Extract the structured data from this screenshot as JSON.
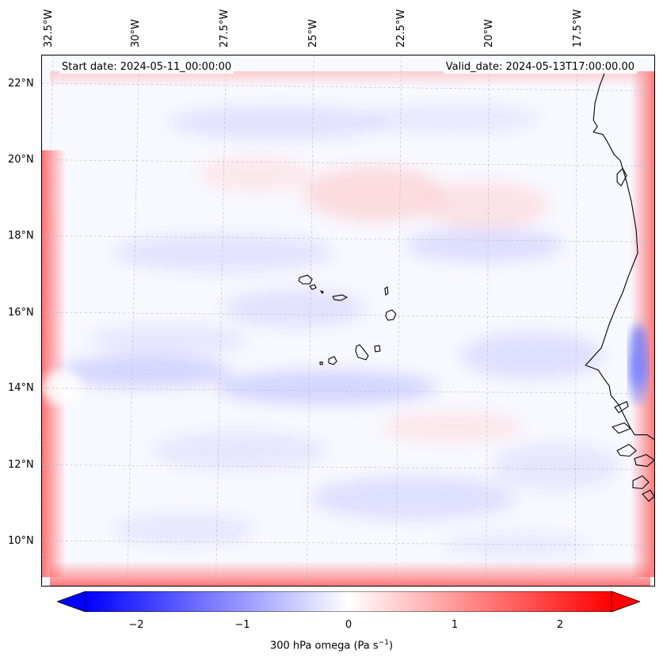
{
  "map": {
    "start_date": "Start date: 2024-05-11_00:00:00",
    "valid_date": "Valid_date: 2024-05-13T17:00:00.00",
    "lon_labels": [
      "32.5°W",
      "30°W",
      "27.5°W",
      "25°W",
      "22.5°W",
      "20°W",
      "17.5°W"
    ],
    "lat_labels": [
      "22°N",
      "20°N",
      "18°N",
      "16°N",
      "14°N",
      "12°N",
      "10°N"
    ]
  },
  "colorbar": {
    "ticks": [
      "−2",
      "−1",
      "0",
      "1",
      "2"
    ],
    "label_prefix": "300 hPa omega (Pa s",
    "label_exp": "−1",
    "label_suffix": ")",
    "min": -2.75,
    "max": 2.75,
    "low_color": "#0000ff",
    "mid_color": "#ffffff",
    "high_color": "#ff0000"
  }
}
